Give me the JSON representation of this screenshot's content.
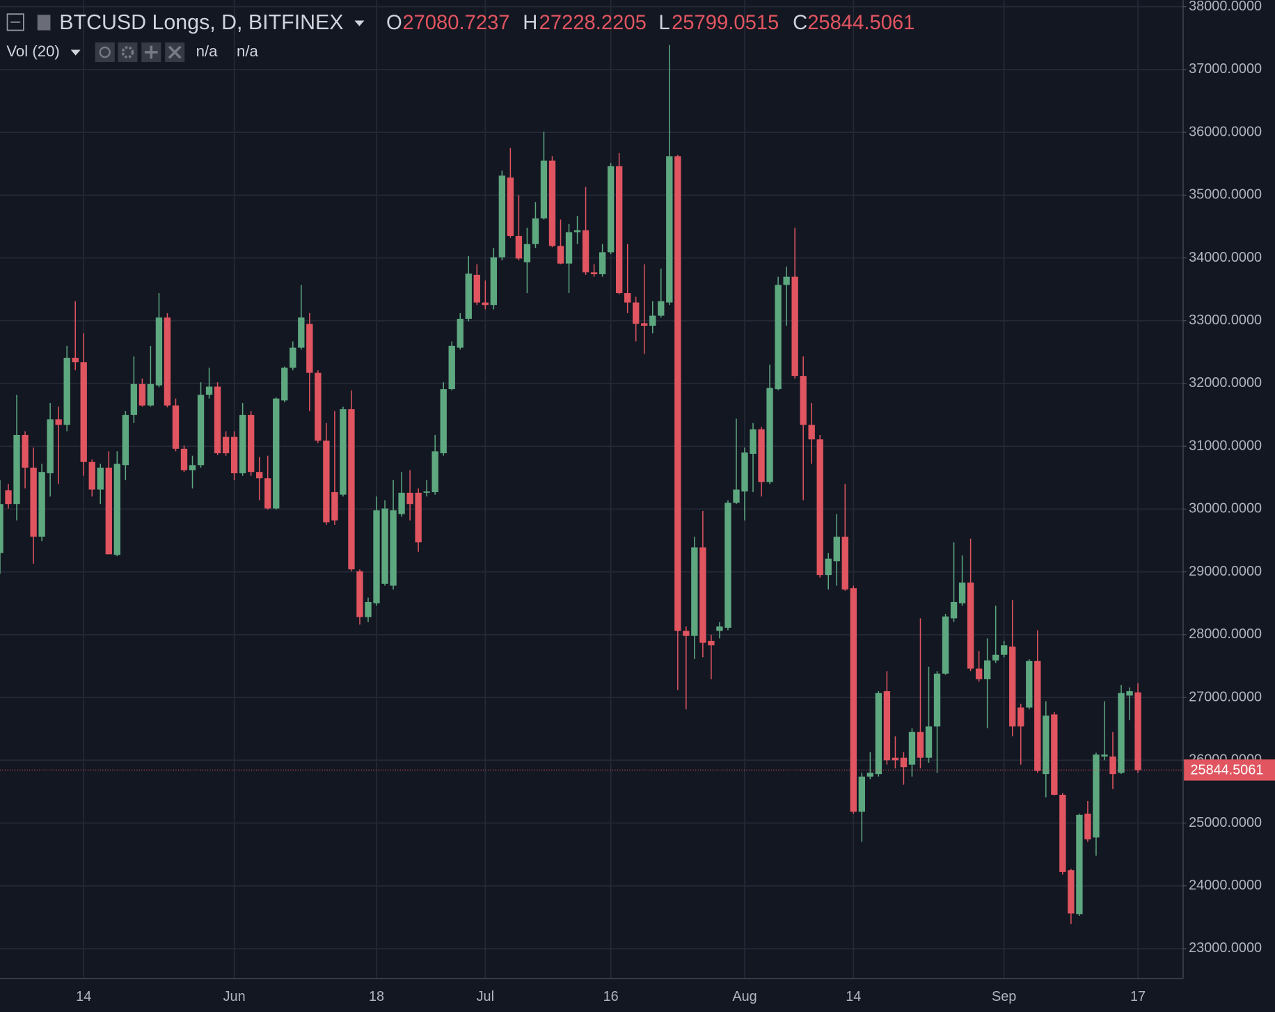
{
  "legend": {
    "symbol": "BTCUSD Longs, D, BITFINEX",
    "ohlc_labels": [
      "O",
      "H",
      "L",
      "C"
    ],
    "indicator": "Vol (20)",
    "indicator_values": [
      "n/a",
      "n/a"
    ]
  },
  "chart_data": {
    "type": "candlestick",
    "up_color": "#5ea880",
    "down_color": "#e05560",
    "ylim": [
      22525,
      38104
    ],
    "yticks": [
      {
        "value": 23000,
        "label": "23000.0000"
      },
      {
        "value": 24000,
        "label": "24000.0000"
      },
      {
        "value": 25000,
        "label": "25000.0000"
      },
      {
        "value": 26000,
        "label": "26000.0000"
      },
      {
        "value": 27000,
        "label": "27000.0000"
      },
      {
        "value": 28000,
        "label": "28000.0000"
      },
      {
        "value": 29000,
        "label": "29000.0000"
      },
      {
        "value": 30000,
        "label": "30000.0000"
      },
      {
        "value": 31000,
        "label": "31000.0000"
      },
      {
        "value": 32000,
        "label": "32000.0000"
      },
      {
        "value": 33000,
        "label": "33000.0000"
      },
      {
        "value": 34000,
        "label": "34000.0000"
      },
      {
        "value": 35000,
        "label": "35000.0000"
      },
      {
        "value": 36000,
        "label": "36000.0000"
      },
      {
        "value": 37000,
        "label": "37000.0000"
      },
      {
        "value": 38000,
        "label": "38000.0000"
      }
    ],
    "grid": true,
    "categories": [
      null,
      null,
      null,
      null,
      null,
      null,
      null,
      null,
      null,
      null,
      "14",
      null,
      null,
      null,
      null,
      null,
      null,
      null,
      null,
      null,
      null,
      null,
      null,
      null,
      null,
      null,
      null,
      null,
      "Jun",
      null,
      null,
      null,
      null,
      null,
      null,
      null,
      null,
      null,
      null,
      null,
      null,
      null,
      null,
      null,
      null,
      "18",
      null,
      null,
      null,
      null,
      null,
      null,
      null,
      null,
      null,
      null,
      null,
      null,
      "Jul",
      null,
      null,
      null,
      null,
      null,
      null,
      null,
      null,
      null,
      null,
      null,
      null,
      null,
      null,
      "16",
      null,
      null,
      null,
      null,
      null,
      null,
      null,
      null,
      null,
      null,
      null,
      null,
      null,
      null,
      null,
      "Aug",
      null,
      null,
      null,
      null,
      null,
      null,
      null,
      null,
      null,
      null,
      null,
      null,
      "14",
      null,
      null,
      null,
      null,
      null,
      null,
      null,
      null,
      null,
      null,
      null,
      null,
      null,
      null,
      null,
      null,
      null,
      "Sep",
      null,
      null,
      null,
      null,
      null,
      null,
      null,
      null,
      null,
      null,
      null,
      null,
      null,
      null,
      null,
      "17"
    ],
    "open": [
      29300,
      30300,
      30080,
      31180,
      30660,
      29560,
      30570,
      31430,
      31340,
      32410,
      32340,
      30750,
      30310,
      30660,
      29270,
      30700,
      31500,
      31990,
      31650,
      31970,
      33050,
      31650,
      30960,
      30620,
      30700,
      31820,
      31950,
      31150,
      31150,
      30570,
      31500,
      30590,
      30490,
      30010,
      31730,
      32250,
      32570,
      32950,
      32170,
      31090,
      30270,
      30230,
      31590,
      29010,
      28280,
      28500,
      28810,
      28780,
      29920,
      30260,
      30260,
      30260,
      30270,
      30890,
      31910,
      32570,
      33030,
      33730,
      33290,
      33250,
      34010,
      35280,
      34350,
      33930,
      34220,
      34630,
      35550,
      34190,
      33910,
      34410,
      34440,
      33770,
      33740,
      34090,
      35460,
      33440,
      33290,
      32960,
      32920,
      33080,
      33290,
      35620,
      28060,
      27980,
      29390,
      27900,
      28060,
      28110,
      30100,
      30280,
      30880,
      31270,
      30430,
      31910,
      33570,
      33700,
      32120,
      31340,
      31110,
      28950,
      29170,
      29560,
      28740,
      25180,
      25740,
      25780,
      27100,
      26040,
      26040,
      25930,
      26450,
      26040,
      26540,
      27380,
      28260,
      28500,
      28830,
      27460,
      27290,
      27590,
      27680,
      27810,
      26840,
      26840,
      27580,
      25780,
      26730,
      25450,
      24250,
      23550,
      25150,
      24770,
      26060,
      26060,
      25800,
      27030,
      27080.7237
    ],
    "high": [
      30460,
      30400,
      31820,
      31240,
      30980,
      30720,
      31690,
      31630,
      32600,
      33310,
      32800,
      30790,
      30720,
      30920,
      30920,
      31560,
      32430,
      32080,
      32600,
      33440,
      33120,
      31760,
      31010,
      30850,
      32020,
      32250,
      32020,
      31240,
      31240,
      31690,
      31560,
      30830,
      30850,
      31780,
      32270,
      32670,
      33570,
      33120,
      32210,
      31370,
      31560,
      31630,
      31890,
      29040,
      28590,
      30200,
      30140,
      30460,
      30590,
      30620,
      30330,
      30460,
      31180,
      32020,
      32670,
      33120,
      34030,
      33900,
      33640,
      34160,
      35390,
      35750,
      35000,
      34480,
      34890,
      36010,
      35620,
      34610,
      34540,
      34670,
      35130,
      33900,
      34220,
      35510,
      35670,
      34220,
      33380,
      33900,
      33310,
      33830,
      37390,
      35640,
      28130,
      29560,
      29970,
      28000,
      28200,
      30140,
      31440,
      30980,
      31370,
      31310,
      32300,
      33700,
      33860,
      34480,
      32430,
      31690,
      31180,
      29300,
      29920,
      30400,
      28780,
      25800,
      26130,
      27100,
      27420,
      26380,
      26130,
      26510,
      28260,
      27490,
      27420,
      28330,
      29470,
      29260,
      29530,
      27740,
      27940,
      28460,
      27900,
      28550,
      26900,
      27610,
      28070,
      26940,
      26770,
      25480,
      24270,
      25150,
      25350,
      26120,
      26940,
      26450,
      27200,
      27160,
      27228.2205
    ],
    "low": [
      28970,
      30010,
      29820,
      30330,
      29130,
      29490,
      30200,
      30400,
      31240,
      32210,
      30530,
      30200,
      30080,
      29280,
      29250,
      30460,
      31370,
      31630,
      31630,
      31940,
      31620,
      30920,
      30590,
      30330,
      30660,
      31760,
      30860,
      30850,
      30460,
      30530,
      30530,
      30140,
      29990,
      29990,
      31700,
      32210,
      32540,
      31560,
      31050,
      29750,
      29750,
      30200,
      29010,
      28160,
      28200,
      28460,
      28780,
      28720,
      29880,
      29820,
      29320,
      30200,
      30230,
      30850,
      31890,
      32540,
      32990,
      33250,
      33180,
      33180,
      33960,
      34320,
      33960,
      33440,
      34160,
      34610,
      34170,
      33900,
      33440,
      34220,
      33730,
      33700,
      33700,
      34060,
      33420,
      33120,
      32670,
      32470,
      32800,
      33050,
      33250,
      27120,
      26810,
      27610,
      27640,
      27290,
      27940,
      28070,
      30080,
      29820,
      30270,
      30200,
      30400,
      31890,
      32920,
      32080,
      30140,
      30720,
      28910,
      28720,
      28780,
      28700,
      25150,
      24700,
      25700,
      25740,
      25930,
      25870,
      25610,
      25740,
      25870,
      25960,
      25800,
      27360,
      28200,
      28460,
      27420,
      27250,
      26510,
      27550,
      27640,
      26380,
      25930,
      26810,
      25800,
      25410,
      25440,
      24180,
      23390,
      23520,
      24700,
      24480,
      26000,
      25540,
      25780,
      26640,
      25799.0515
    ],
    "close": [
      30080,
      30080,
      31180,
      30660,
      29560,
      30590,
      31430,
      31340,
      32410,
      32340,
      30750,
      30310,
      30660,
      29280,
      30720,
      31500,
      31990,
      31650,
      31990,
      33050,
      31650,
      30960,
      30620,
      30700,
      31820,
      31950,
      30890,
      30890,
      30570,
      31500,
      30590,
      30490,
      30010,
      31760,
      32250,
      32570,
      33050,
      32170,
      31090,
      29790,
      29820,
      31590,
      29040,
      28280,
      28520,
      29980,
      30010,
      29980,
      30260,
      30080,
      29470,
      30280,
      30920,
      31910,
      32600,
      33030,
      33750,
      33290,
      33250,
      34010,
      35310,
      34350,
      33990,
      34220,
      34630,
      35550,
      34190,
      33910,
      34410,
      34440,
      33770,
      33740,
      34090,
      35460,
      33440,
      33290,
      32950,
      32920,
      33080,
      33310,
      35620,
      28060,
      27980,
      29390,
      27870,
      27830,
      28130,
      30100,
      30310,
      30900,
      31270,
      30430,
      31930,
      33570,
      33700,
      32120,
      31340,
      31110,
      28950,
      29210,
      29560,
      28720,
      25180,
      25740,
      25800,
      27070,
      26000,
      26000,
      25890,
      26450,
      26040,
      26540,
      27380,
      28290,
      28520,
      28830,
      27460,
      27290,
      27590,
      27680,
      27830,
      26540,
      26540,
      27580,
      25830,
      26710,
      25450,
      24220,
      23560,
      25130,
      24740,
      26090,
      26090,
      25780,
      27070,
      27100,
      25844.5061
    ]
  }
}
